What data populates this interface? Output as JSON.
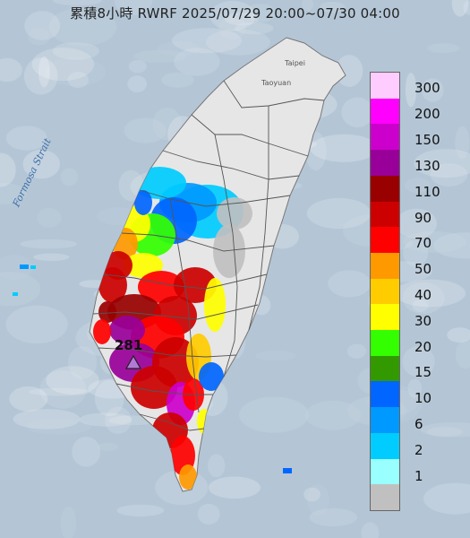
{
  "title": "累積8小時 RWRF 2025/07/29 20:00~07/30 04:00",
  "places": {
    "taipei": "Taipei",
    "taoyuan": "Taoyuan"
  },
  "sea_label": "Formosa Strait",
  "max_marker": {
    "value": "281",
    "symbol": "triangle"
  },
  "legend": {
    "labels": [
      "300",
      "200",
      "150",
      "130",
      "110",
      "90",
      "70",
      "50",
      "40",
      "30",
      "20",
      "15",
      "10",
      "6",
      "2",
      "1"
    ],
    "colors": [
      "#ffccff",
      "#ff00ff",
      "#cc00cc",
      "#990099",
      "#990000",
      "#cc0000",
      "#ff0000",
      "#ff9900",
      "#ffcc00",
      "#ffff00",
      "#33ff00",
      "#339900",
      "#0066ff",
      "#0099ff",
      "#00ccff",
      "#99ffff",
      "#c0c0c0"
    ]
  },
  "colors": {
    "sea": "#b4c6d6",
    "land": "#e6e6e6",
    "county_line": "#555555"
  }
}
